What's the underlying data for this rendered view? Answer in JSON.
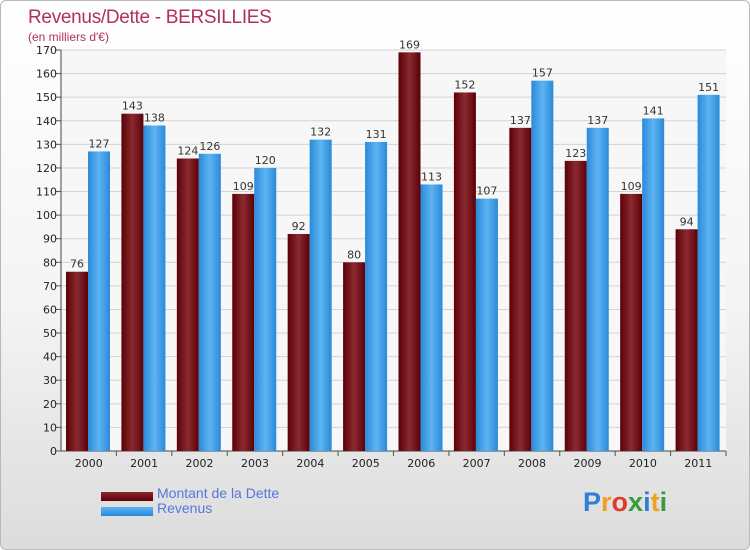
{
  "chart_data": {
    "type": "bar",
    "title": "Revenus/Dette - BERSILLIES",
    "subtitle": "(en milliers d'€)",
    "categories": [
      "2000",
      "2001",
      "2002",
      "2003",
      "2004",
      "2005",
      "2006",
      "2007",
      "2008",
      "2009",
      "2010",
      "2011"
    ],
    "series": [
      {
        "name": "Montant de la Dette",
        "color": "#7a1a22",
        "values": [
          76,
          143,
          124,
          109,
          92,
          80,
          169,
          152,
          137,
          123,
          109,
          94
        ]
      },
      {
        "name": "Revenus",
        "color": "#3d9be0",
        "values": [
          127,
          138,
          126,
          120,
          132,
          131,
          113,
          107,
          157,
          137,
          141,
          151
        ]
      }
    ],
    "ylim": [
      0,
      170
    ],
    "ytick_step": 10,
    "grid": true,
    "legend_position": "bottom-left"
  },
  "logo": {
    "letters": [
      "P",
      "r",
      "o",
      "x",
      "i",
      "t",
      "i"
    ],
    "colors": [
      "#2e7fd6",
      "#f0a020",
      "#e03a2a",
      "#3a9a3a",
      "#2e7fd6",
      "#f0a020",
      "#3a9a3a"
    ]
  }
}
